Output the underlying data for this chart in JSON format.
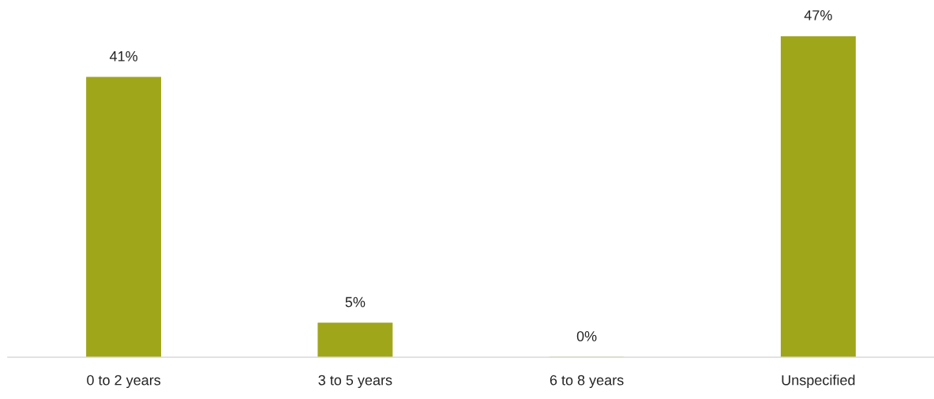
{
  "chart_data": {
    "type": "bar",
    "categories": [
      "0 to 2 years",
      "3 to 5 years",
      "6 to 8 years",
      "Unspecified"
    ],
    "values": [
      41,
      5,
      0,
      47
    ],
    "value_labels": [
      "41%",
      "5%",
      "0%",
      "47%"
    ],
    "color": "#a0a61a",
    "grid": false,
    "legend": false
  }
}
